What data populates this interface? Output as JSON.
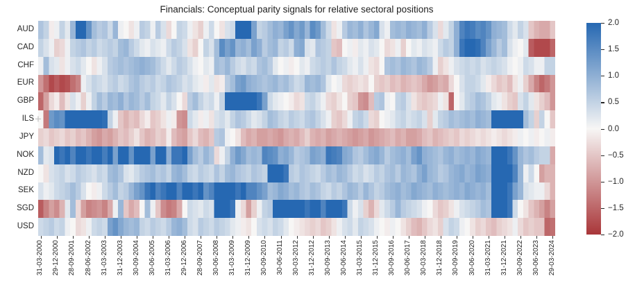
{
  "title": "Financials: Conceptual parity signals for relative sectoral positions",
  "chart_data": {
    "type": "heatmap",
    "title": "Financials: Conceptual parity signals for relative sectoral positions",
    "rows": [
      "AUD",
      "CAD",
      "CHF",
      "EUR",
      "GBP",
      "ILS",
      "JPY",
      "NOK",
      "NZD",
      "SEK",
      "SGD",
      "USD"
    ],
    "n_cols": 97,
    "x_tick_step": 3,
    "x_tick_labels": [
      "31-03-2000",
      "29-12-2000",
      "28-09-2001",
      "28-06-2002",
      "31-03-2003",
      "31-12-2003",
      "30-09-2004",
      "30-06-2005",
      "31-03-2006",
      "29-12-2006",
      "28-09-2007",
      "30-06-2008",
      "31-03-2009",
      "31-12-2009",
      "30-09-2010",
      "30-06-2011",
      "30-03-2012",
      "31-12-2012",
      "30-09-2013",
      "30-06-2014",
      "31-03-2015",
      "31-12-2015",
      "30-09-2016",
      "30-06-2017",
      "30-03-2018",
      "31-12-2018",
      "30-09-2019",
      "30-06-2020",
      "31-03-2021",
      "31-12-2021",
      "30-09-2022",
      "30-06-2023",
      "29-03-2024"
    ],
    "colorbar": {
      "vmin": -2.0,
      "vmax": 2.0,
      "tick_labels": [
        "2.0",
        "1.5",
        "1.0",
        "0.5",
        "0.0",
        "−0.5",
        "−1.0",
        "−1.5",
        "−2.0"
      ],
      "tick_values": [
        2.0,
        1.5,
        1.0,
        0.5,
        0.0,
        -0.5,
        -1.0,
        -1.5,
        -2.0
      ]
    },
    "colors": {
      "positive": "#2668b2",
      "mid": "#f7f6f5",
      "negative": "#a93639"
    },
    "matrix": [
      [
        0.7,
        0.5,
        -0.1,
        0.1,
        0.5,
        0.2,
        0.9,
        2.0,
        2.0,
        1.4,
        0.8,
        0.6,
        0.7,
        0.4,
        0.9,
        0.1,
        0.0,
        -0.2,
        0.1,
        0.6,
        0.5,
        0.1,
        0.6,
        0.3,
        -0.3,
        0.0,
        0.5,
        0.4,
        0.1,
        -0.2,
        -0.4,
        0.1,
        0.4,
        0.0,
        -0.2,
        0.3,
        0.4,
        2.0,
        2.0,
        2.0,
        1.2,
        0.5,
        0.6,
        0.8,
        1.0,
        0.9,
        1.2,
        1.4,
        1.1,
        1.3,
        0.9,
        1.5,
        1.3,
        0.8,
        0.4,
        -0.2,
        0.1,
        0.6,
        0.9,
        0.8,
        1.0,
        0.7,
        0.9,
        1.1,
        0.3,
        0.1,
        0.8,
        0.9,
        0.8,
        1.0,
        0.9,
        0.8,
        1.0,
        0.6,
        0.3,
        -0.3,
        0.2,
        0.5,
        1.0,
        1.6,
        1.8,
        1.7,
        1.5,
        1.6,
        1.4,
        1.0,
        0.9,
        0.8,
        0.4,
        0.2,
        0.5,
        0.3,
        -0.5,
        -0.7,
        -0.8,
        -0.8,
        -0.5
      ],
      [
        0.5,
        0.3,
        0.1,
        -0.4,
        -0.3,
        0.1,
        0.5,
        0.6,
        0.7,
        0.5,
        0.6,
        0.4,
        0.5,
        0.6,
        0.5,
        0.8,
        0.9,
        0.6,
        0.4,
        0.2,
        0.1,
        0.3,
        0.2,
        0.1,
        0.4,
        0.6,
        0.5,
        0.3,
        -0.2,
        -0.4,
        0.0,
        0.5,
        0.3,
        0.8,
        1.5,
        1.2,
        1.4,
        0.9,
        1.0,
        0.8,
        1.2,
        1.0,
        0.6,
        0.8,
        0.9,
        0.5,
        0.6,
        0.4,
        1.0,
        1.1,
        0.3,
        0.2,
        0.7,
        0.6,
        0.5,
        -0.5,
        -0.6,
        0.0,
        0.1,
        -0.1,
        0.2,
        0.1,
        0.3,
        0.2,
        0.0,
        -0.3,
        -0.2,
        0.1,
        -0.4,
        0.0,
        0.2,
        0.1,
        0.3,
        0.2,
        0.1,
        0.4,
        0.6,
        0.5,
        1.0,
        1.8,
        2.0,
        2.0,
        1.9,
        1.6,
        1.2,
        0.9,
        0.6,
        0.8,
        0.3,
        0.1,
        0.0,
        0.2,
        -1.6,
        -1.8,
        -1.8,
        -1.8,
        -1.5
      ],
      [
        0.1,
        0.8,
        0.3,
        0.2,
        -0.2,
        0.1,
        0.3,
        0.4,
        0.2,
        0.0,
        -0.2,
        0.1,
        0.3,
        0.6,
        0.7,
        0.8,
        0.7,
        0.8,
        0.9,
        1.0,
        0.9,
        0.8,
        0.6,
        0.4,
        0.2,
        0.4,
        0.6,
        0.5,
        0.3,
        0.1,
        0.0,
        0.2,
        0.1,
        0.8,
        0.7,
        0.9,
        0.6,
        0.4,
        0.3,
        0.5,
        0.4,
        0.7,
        0.8,
        0.6,
        0.2,
        0.0,
        0.1,
        -0.1,
        0.0,
        0.2,
        0.1,
        0.4,
        0.5,
        0.6,
        0.5,
        0.7,
        0.5,
        0.4,
        0.2,
        0.1,
        0.3,
        0.1,
        -0.2,
        -0.3,
        0.0,
        0.7,
        0.8,
        0.7,
        0.9,
        0.8,
        0.7,
        0.9,
        0.8,
        0.6,
        0.1,
        -0.4,
        -0.2,
        0.1,
        0.3,
        0.4,
        0.5,
        0.4,
        0.5,
        0.3,
        0.4,
        0.5,
        0.4,
        0.3,
        0.1,
        0.0,
        0.1,
        0.4,
        0.3,
        0.1,
        0.1,
        0.5,
        0.5
      ],
      [
        -1.0,
        -1.4,
        -1.8,
        -1.6,
        -1.8,
        -1.7,
        -1.4,
        -1.2,
        0.1,
        0.3,
        0.5,
        0.4,
        0.3,
        0.5,
        0.6,
        0.4,
        0.5,
        0.7,
        0.8,
        0.6,
        0.5,
        0.6,
        0.4,
        0.5,
        0.7,
        0.6,
        0.5,
        0.3,
        0.4,
        0.2,
        0.1,
        -0.1,
        0.2,
        -0.2,
        -0.1,
        0.6,
        0.8,
        1.2,
        1.3,
        1.0,
        0.9,
        0.8,
        0.7,
        0.8,
        0.9,
        0.7,
        0.8,
        0.6,
        0.4,
        0.5,
        0.9,
        0.8,
        0.9,
        0.7,
        0.2,
        0.0,
        0.1,
        -0.3,
        -0.4,
        -0.3,
        -0.2,
        -0.3,
        0.0,
        -0.4,
        -0.5,
        -0.4,
        -0.6,
        -0.5,
        -0.7,
        -0.6,
        -0.5,
        -0.6,
        -0.8,
        -1.0,
        -0.9,
        -0.7,
        -0.8,
        -0.3,
        0.0,
        0.3,
        0.5,
        0.5,
        0.4,
        0.2,
        -0.1,
        -0.3,
        -0.5,
        -0.4,
        -0.6,
        -0.2,
        0.1,
        -0.4,
        -0.8,
        -1.2,
        -1.5,
        -1.3,
        -1.0
      ],
      [
        -1.5,
        -0.9,
        -0.3,
        -0.1,
        -0.6,
        -0.2,
        0.3,
        0.1,
        -0.4,
        0.1,
        0.5,
        0.8,
        0.6,
        0.9,
        0.8,
        1.0,
        0.7,
        0.9,
        0.8,
        0.6,
        0.8,
        0.5,
        0.4,
        0.2,
        0.5,
        0.3,
        0.0,
        -0.3,
        0.6,
        0.8,
        0.5,
        0.3,
        0.4,
        0.1,
        0.5,
        2.0,
        2.0,
        2.0,
        2.0,
        2.0,
        2.0,
        1.8,
        1.2,
        0.4,
        0.2,
        0.1,
        0.0,
        -0.1,
        -0.3,
        -0.2,
        0.4,
        0.5,
        0.3,
        0.1,
        -0.3,
        -0.4,
        -0.2,
        0.0,
        -0.4,
        -0.5,
        -1.0,
        -1.1,
        -0.6,
        0.6,
        0.7,
        0.1,
        0.0,
        0.5,
        0.6,
        0.3,
        -0.2,
        -0.4,
        -0.5,
        -0.4,
        -0.3,
        0.1,
        -0.2,
        -1.5,
        0.0,
        0.2,
        0.5,
        0.6,
        0.8,
        0.7,
        0.5,
        0.2,
        0.1,
        -0.2,
        -0.4,
        -0.5,
        0.3,
        0.5,
        0.2,
        -0.2,
        -0.4,
        -0.6,
        -1.0
      ],
      [
        0.0,
        -1.3,
        1.3,
        1.5,
        1.4,
        2.0,
        2.0,
        2.0,
        2.0,
        2.0,
        2.0,
        2.0,
        1.9,
        0.5,
        0.1,
        -0.5,
        -0.7,
        -0.5,
        -0.6,
        -0.3,
        -0.1,
        -0.5,
        -0.4,
        -0.2,
        0.1,
        -0.1,
        -1.0,
        -1.1,
        0.4,
        0.2,
        -0.1,
        0.1,
        -0.2,
        0.3,
        0.4,
        0.2,
        0.5,
        0.7,
        0.6,
        0.4,
        0.2,
        0.3,
        0.5,
        0.8,
        0.7,
        0.5,
        0.4,
        0.6,
        0.5,
        0.4,
        0.6,
        0.7,
        0.5,
        0.3,
        0.1,
        -0.4,
        -0.5,
        -0.3,
        0.1,
        0.5,
        0.6,
        0.4,
        -0.3,
        -0.4,
        0.0,
        0.1,
        0.2,
        0.4,
        0.5,
        0.3,
        0.4,
        0.5,
        0.3,
        -0.4,
        0.2,
        0.5,
        0.6,
        0.8,
        0.7,
        0.8,
        0.9,
        0.8,
        1.0,
        0.9,
        0.8,
        2.0,
        2.0,
        2.0,
        2.0,
        2.0,
        2.0,
        0.8,
        0.5,
        -0.4,
        0.5,
        0.0,
        -0.5
      ],
      [
        -0.4,
        -0.3,
        -0.5,
        -0.4,
        -0.3,
        -0.5,
        -0.4,
        -0.6,
        -0.5,
        -0.7,
        -0.9,
        -1.0,
        -0.8,
        -0.9,
        -0.7,
        -0.5,
        -0.6,
        -0.4,
        -0.2,
        -0.5,
        -0.7,
        -0.6,
        -0.4,
        -0.5,
        -0.1,
        -0.6,
        -0.8,
        -0.9,
        -0.5,
        -0.3,
        -0.6,
        -0.7,
        -0.5,
        0.6,
        0.7,
        0.1,
        0.0,
        -0.2,
        -0.6,
        -0.8,
        -0.7,
        -0.9,
        -0.9,
        -0.8,
        -0.9,
        -1.0,
        -0.8,
        -0.7,
        -0.8,
        -0.6,
        -0.4,
        -0.7,
        -0.8,
        -0.7,
        -0.9,
        -0.8,
        -0.7,
        -0.8,
        -0.9,
        -1.0,
        -0.9,
        -0.8,
        -1.0,
        -0.9,
        -0.8,
        -0.7,
        -0.6,
        -0.8,
        -0.7,
        -0.9,
        -0.9,
        -0.8,
        -0.6,
        -0.5,
        -0.7,
        -0.6,
        -0.5,
        -0.4,
        -0.5,
        -0.3,
        -0.4,
        -0.3,
        -0.2,
        -0.3,
        -0.2,
        -0.1,
        -0.2,
        -0.3,
        -0.2,
        -0.1,
        0.1,
        0.0,
        0.1,
        -0.1,
        0.0,
        0.1,
        -0.1
      ],
      [
        0.8,
        0.2,
        0.3,
        2.0,
        1.8,
        2.0,
        1.6,
        2.0,
        2.0,
        1.8,
        2.0,
        2.0,
        1.7,
        2.0,
        1.2,
        2.0,
        2.0,
        1.4,
        2.0,
        2.0,
        2.0,
        1.2,
        2.0,
        2.0,
        1.0,
        1.8,
        1.8,
        2.0,
        1.2,
        0.8,
        0.6,
        0.9,
        0.7,
        -0.3,
        0.1,
        0.5,
        1.0,
        1.3,
        1.1,
        0.8,
        0.9,
        0.8,
        1.6,
        1.5,
        1.4,
        1.0,
        1.1,
        0.9,
        0.6,
        0.7,
        0.8,
        1.2,
        1.1,
        1.0,
        1.8,
        1.7,
        1.6,
        1.1,
        1.0,
        0.7,
        0.6,
        0.8,
        1.0,
        1.1,
        0.9,
        0.6,
        0.8,
        0.9,
        1.0,
        0.8,
        1.2,
        1.4,
        1.0,
        0.9,
        0.8,
        0.7,
        0.9,
        1.0,
        0.8,
        0.9,
        1.0,
        0.9,
        1.1,
        1.0,
        0.9,
        2.0,
        2.0,
        2.0,
        1.8,
        1.4,
        0.9,
        0.7,
        0.8,
        0.6,
        0.5,
        0.5,
        -0.8
      ],
      [
        0.0,
        -0.2,
        0.3,
        0.4,
        0.5,
        0.3,
        0.4,
        0.6,
        0.5,
        0.4,
        0.3,
        0.5,
        0.4,
        0.8,
        0.9,
        0.7,
        0.3,
        0.2,
        0.4,
        0.6,
        0.7,
        0.8,
        0.6,
        0.7,
        0.5,
        0.9,
        1.0,
        0.8,
        0.5,
        0.4,
        0.6,
        0.5,
        0.4,
        0.7,
        0.5,
        0.8,
        0.9,
        0.7,
        0.6,
        0.5,
        0.7,
        0.6,
        0.5,
        2.0,
        2.0,
        2.0,
        1.8,
        0.6,
        0.5,
        0.7,
        0.6,
        0.5,
        0.4,
        0.6,
        0.8,
        0.7,
        0.9,
        0.8,
        0.6,
        0.4,
        0.5,
        0.3,
        0.4,
        0.6,
        0.5,
        0.7,
        0.8,
        0.6,
        0.9,
        0.8,
        0.7,
        1.0,
        1.2,
        0.9,
        0.8,
        0.6,
        0.7,
        0.9,
        1.0,
        1.1,
        0.9,
        1.0,
        1.2,
        1.1,
        1.0,
        2.0,
        2.0,
        2.0,
        2.0,
        1.6,
        0.9,
        0.1,
        0.4,
        0.0,
        -0.9,
        -0.7,
        -0.7
      ],
      [
        0.3,
        0.1,
        0.2,
        0.4,
        0.5,
        0.6,
        0.8,
        0.6,
        0.3,
        0.0,
        -0.1,
        0.1,
        0.4,
        0.6,
        0.8,
        0.5,
        0.6,
        0.9,
        1.2,
        1.4,
        1.8,
        2.0,
        1.6,
        1.8,
        2.0,
        2.0,
        1.6,
        2.0,
        2.0,
        1.8,
        2.0,
        1.4,
        1.6,
        2.0,
        2.0,
        2.0,
        2.0,
        1.8,
        2.0,
        1.6,
        1.6,
        1.4,
        1.2,
        0.8,
        0.9,
        1.1,
        1.0,
        0.8,
        0.9,
        0.7,
        0.6,
        0.8,
        0.7,
        0.5,
        0.4,
        0.6,
        0.5,
        0.7,
        0.9,
        0.8,
        0.6,
        0.9,
        0.7,
        0.5,
        0.6,
        0.8,
        0.9,
        1.0,
        0.8,
        0.9,
        1.1,
        1.0,
        0.9,
        0.8,
        1.0,
        0.9,
        0.8,
        0.9,
        1.0,
        0.9,
        1.1,
        1.0,
        0.9,
        1.0,
        0.8,
        2.0,
        2.0,
        2.0,
        1.8,
        1.2,
        0.9,
        0.3,
        0.2,
        0.1,
        0.1,
        -0.3,
        -0.7
      ],
      [
        -1.6,
        -1.2,
        -0.9,
        -1.1,
        -0.7,
        0.2,
        0.8,
        -0.3,
        -0.9,
        -1.2,
        -1.1,
        -1.0,
        -1.2,
        -0.8,
        0.1,
        0.9,
        -0.5,
        -0.8,
        -0.6,
        0.0,
        0.8,
        0.1,
        -0.5,
        -1.1,
        -1.3,
        -1.2,
        -0.8,
        0.0,
        0.4,
        0.3,
        0.2,
        0.4,
        0.3,
        2.0,
        2.0,
        2.0,
        1.8,
        0.1,
        -0.3,
        -0.9,
        -0.4,
        0.1,
        0.5,
        0.6,
        2.0,
        2.0,
        2.0,
        2.0,
        2.0,
        2.0,
        1.8,
        2.0,
        2.0,
        1.6,
        2.0,
        2.0,
        2.0,
        1.8,
        0.4,
        0.1,
        0.3,
        -0.4,
        -0.7,
        -0.3,
        0.2,
        0.4,
        0.6,
        0.9,
        0.6,
        0.5,
        0.4,
        0.3,
        0.1,
        0.0,
        -0.3,
        -0.5,
        -0.4,
        -0.2,
        0.1,
        0.3,
        0.4,
        0.5,
        0.6,
        0.8,
        0.7,
        2.0,
        2.0,
        2.0,
        1.8,
        0.4,
        0.0,
        -0.2,
        -0.5,
        -0.7,
        -0.9,
        -1.2,
        -0.9
      ],
      [
        0.4,
        0.5,
        0.6,
        0.4,
        0.5,
        0.1,
        0.0,
        -0.3,
        -0.2,
        0.1,
        0.4,
        0.5,
        0.4,
        1.2,
        1.4,
        1.1,
        0.9,
        0.8,
        0.9,
        0.5,
        0.4,
        0.6,
        0.5,
        0.4,
        0.6,
        0.9,
        1.0,
        0.8,
        0.4,
        0.3,
        0.6,
        0.5,
        0.4,
        0.6,
        0.5,
        0.4,
        0.2,
        0.1,
        -0.1,
        -0.2,
        0.0,
        0.3,
        0.4,
        0.3,
        0.5,
        0.4,
        0.2,
        0.0,
        -0.1,
        -0.2,
        -0.3,
        -0.4,
        -0.3,
        -0.5,
        -0.4,
        -0.2,
        0.1,
        0.3,
        0.4,
        0.2,
        0.5,
        0.4,
        0.3,
        0.1,
        0.0,
        -0.1,
        0.1,
        0.0,
        -0.2,
        -0.4,
        -0.6,
        -0.7,
        -0.5,
        -0.3,
        -0.2,
        -0.4,
        0.3,
        0.5,
        0.4,
        0.1,
        0.0,
        -0.2,
        -0.4,
        -0.3,
        -0.5,
        -0.6,
        -0.4,
        -0.3,
        -0.2,
        0.1,
        -0.3,
        -0.5,
        -0.4,
        -0.5,
        -0.5,
        -1.5,
        -1.4
      ]
    ]
  },
  "plus_marker": "+"
}
